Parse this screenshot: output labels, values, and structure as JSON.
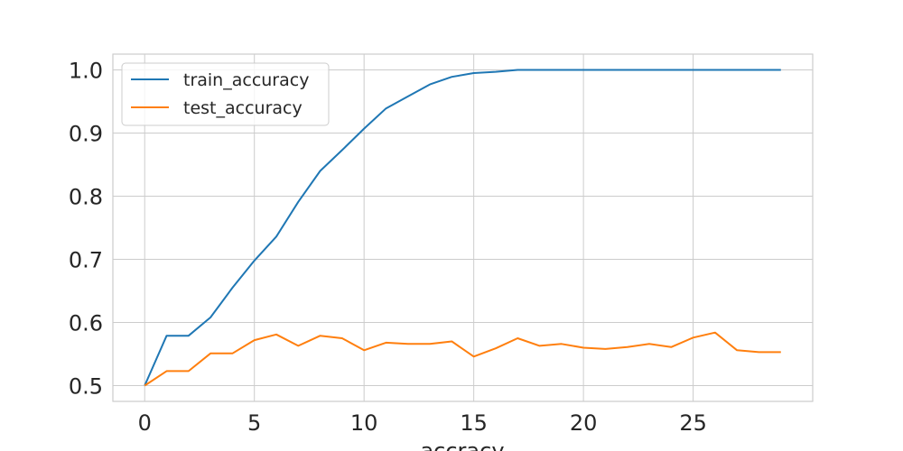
{
  "chart_data": {
    "type": "line",
    "title": "",
    "xlabel": "accracy",
    "ylabel": "",
    "xlim": [
      -1.45,
      30.45
    ],
    "ylim": [
      0.475,
      1.025
    ],
    "xticks": [
      0,
      5,
      10,
      15,
      20,
      25
    ],
    "yticks": [
      0.5,
      0.6,
      0.7,
      0.8,
      0.9,
      1.0
    ],
    "xtick_labels": [
      "0",
      "5",
      "10",
      "15",
      "20",
      "25"
    ],
    "ytick_labels": [
      "0.5",
      "0.6",
      "0.7",
      "0.8",
      "0.9",
      "1.0"
    ],
    "grid": true,
    "legend_position": "upper-left",
    "x": [
      0,
      1,
      2,
      3,
      4,
      5,
      6,
      7,
      8,
      9,
      10,
      11,
      12,
      13,
      14,
      15,
      16,
      17,
      18,
      19,
      20,
      21,
      22,
      23,
      24,
      25,
      26,
      27,
      28,
      29
    ],
    "series": [
      {
        "name": "train_accuracy",
        "color": "#1f77b4",
        "values": [
          0.5,
          0.579,
          0.579,
          0.608,
          0.655,
          0.698,
          0.736,
          0.791,
          0.84,
          0.873,
          0.907,
          0.939,
          0.958,
          0.977,
          0.989,
          0.995,
          0.997,
          1.0,
          1.0,
          1.0,
          1.0,
          1.0,
          1.0,
          1.0,
          1.0,
          1.0,
          1.0,
          1.0,
          1.0,
          1.0
        ]
      },
      {
        "name": "test_accuracy",
        "color": "#ff7f0e",
        "values": [
          0.5,
          0.523,
          0.523,
          0.551,
          0.551,
          0.572,
          0.581,
          0.563,
          0.579,
          0.575,
          0.556,
          0.568,
          0.566,
          0.566,
          0.57,
          0.546,
          0.559,
          0.575,
          0.563,
          0.566,
          0.56,
          0.558,
          0.561,
          0.566,
          0.561,
          0.576,
          0.584,
          0.556,
          0.553,
          0.553
        ]
      }
    ]
  }
}
